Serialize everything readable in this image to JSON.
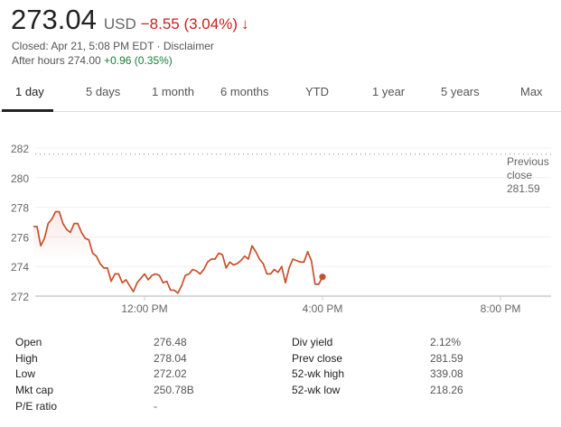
{
  "quote": {
    "price": "273.04",
    "currency": "USD",
    "change": "−8.55 (3.04%)",
    "arrow": "↓",
    "closed": "Closed: Apr 21, 5:08 PM EDT · Disclaimer",
    "after_label": "After hours 274.00",
    "after_change": "+0.96 (0.35%)"
  },
  "tabs": [
    "1 day",
    "5 days",
    "1 month",
    "6 months",
    "YTD",
    "1 year",
    "5 years",
    "Max"
  ],
  "colors": {
    "down": "#c5221f",
    "up": "#188038",
    "line": "#c8502a",
    "after": "#cccccc"
  },
  "chart_data": {
    "type": "line",
    "y_ticks": [
      "282",
      "280",
      "278",
      "276",
      "274",
      "272"
    ],
    "ylim": [
      272,
      282
    ],
    "x_ticks": [
      "12:00 PM",
      "4:00 PM",
      "8:00 PM"
    ],
    "x_tick_hours": [
      12,
      16,
      20
    ],
    "xlim_hours": [
      9.5,
      21.2
    ],
    "previous_close": {
      "label": [
        "Previous",
        "close",
        "281.59"
      ],
      "value": 281.59
    },
    "session": {
      "start_hour": 9.5,
      "end_hour": 16,
      "values": [
        276.7,
        276.7,
        275.4,
        275.9,
        276.9,
        277.2,
        277.7,
        277.7,
        276.9,
        276.5,
        276.3,
        276.9,
        276.9,
        276.3,
        275.9,
        275.8,
        274.9,
        274.7,
        274.2,
        273.9,
        273.9,
        273.0,
        273.5,
        273.5,
        272.9,
        273.1,
        272.7,
        272.3,
        272.9,
        273.2,
        273.5,
        273.1,
        273.4,
        273.5,
        273.4,
        272.9,
        273.0,
        272.4,
        272.4,
        272.2,
        272.7,
        273.4,
        273.5,
        273.8,
        273.7,
        273.5,
        273.8,
        274.3,
        274.5,
        274.5,
        274.9,
        274.8,
        273.9,
        274.3,
        274.1,
        274.2,
        274.4,
        274.7,
        274.5,
        275.4,
        275.0,
        274.5,
        274.2,
        273.5,
        273.5,
        273.8,
        273.6,
        274.0,
        272.9,
        273.9,
        274.5,
        274.4,
        274.3,
        274.3,
        275.0,
        274.4,
        272.8,
        272.8,
        273.3
      ]
    },
    "after_hours": {
      "start_hour": 16,
      "end_hour": 17.1,
      "values": [
        273.3,
        273.3,
        273.6,
        273.4,
        273.3,
        273.7,
        273.5,
        273.3,
        273.4,
        273.7,
        274.0
      ]
    },
    "last_value": 273.3
  },
  "stats": {
    "left": [
      [
        "Open",
        "276.48"
      ],
      [
        "High",
        "278.04"
      ],
      [
        "Low",
        "272.02"
      ],
      [
        "Mkt cap",
        "250.78B"
      ],
      [
        "P/E ratio",
        "-"
      ]
    ],
    "right": [
      [
        "Div yield",
        "2.12%"
      ],
      [
        "Prev close",
        "281.59"
      ],
      [
        "52-wk high",
        "339.08"
      ],
      [
        "52-wk low",
        "218.26"
      ]
    ]
  }
}
